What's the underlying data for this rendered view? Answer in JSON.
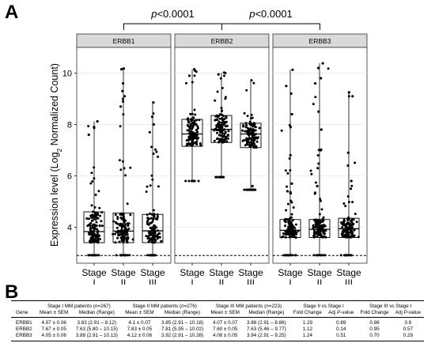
{
  "figure": {
    "panel_a_letter": "A",
    "panel_b_letter": "B"
  },
  "chart_data": {
    "type": "box",
    "ylabel_main": "Expression level (Log",
    "ylabel_sub": "2",
    "ylabel_tail": " Normalized Count)",
    "ylim": [
      2.6,
      11.0
    ],
    "yticks": [
      4,
      6,
      8,
      10
    ],
    "threshold_line": 2.9,
    "categories": [
      "Stage I",
      "Stage II",
      "Stage III"
    ],
    "category_line1": "Stage",
    "category_line2": [
      "I",
      "II",
      "III"
    ],
    "significance": [
      {
        "from": "ERBB1",
        "to": "ERBB2",
        "label_p": "p",
        "label_rest": "<0.0001"
      },
      {
        "from": "ERBB2",
        "to": "ERBB3",
        "label_p": "p",
        "label_rest": "<0.0001"
      }
    ],
    "colors": {
      "panel_header": "#d9d9d9",
      "grid": "#e6e6e6",
      "point": "#000000"
    },
    "grid": true,
    "panels": [
      {
        "name": "ERBB1",
        "series": [
          {
            "stage": "Stage I",
            "n": 267,
            "min": 2.91,
            "q1": 3.4,
            "median": 3.83,
            "q3": 4.6,
            "max": 8.12,
            "outliers": [
              8.12,
              7.9,
              7.6
            ]
          },
          {
            "stage": "Stage II",
            "n": 276,
            "min": 2.91,
            "q1": 3.4,
            "median": 3.85,
            "q3": 4.55,
            "max": 10.18,
            "outliers": [
              10.18,
              10.15,
              9.6,
              9.3,
              9.1,
              8.9,
              8.7
            ]
          },
          {
            "stage": "Stage III",
            "n": 223,
            "min": 2.91,
            "q1": 3.4,
            "median": 3.86,
            "q3": 4.5,
            "max": 8.86,
            "outliers": [
              8.86,
              8.3,
              8.0,
              7.7
            ]
          }
        ]
      },
      {
        "name": "ERBB2",
        "series": [
          {
            "stage": "Stage I",
            "n": 267,
            "min": 5.8,
            "q1": 7.15,
            "median": 7.63,
            "q3": 8.2,
            "max": 10.15,
            "outliers": [
              10.15,
              10.1,
              9.9
            ]
          },
          {
            "stage": "Stage II",
            "n": 276,
            "min": 5.95,
            "q1": 7.3,
            "median": 7.81,
            "q3": 8.35,
            "max": 10.02,
            "outliers": [
              10.02,
              9.95
            ]
          },
          {
            "stage": "Stage III",
            "n": 223,
            "min": 5.46,
            "q1": 7.1,
            "median": 7.63,
            "q3": 8.05,
            "max": 9.77,
            "outliers": [
              5.46,
              5.6
            ]
          }
        ]
      },
      {
        "name": "ERBB3",
        "series": [
          {
            "stage": "Stage I",
            "n": 267,
            "min": 2.91,
            "q1": 3.6,
            "median": 3.88,
            "q3": 4.3,
            "max": 10.13,
            "outliers": [
              10.13,
              9.5,
              9.2,
              8.4,
              7.9,
              6.8,
              6.1,
              5.7,
              5.4
            ]
          },
          {
            "stage": "Stage II",
            "n": 276,
            "min": 2.91,
            "q1": 3.6,
            "median": 3.92,
            "q3": 4.3,
            "max": 10.38,
            "outliers": [
              10.38,
              10.2,
              9.8,
              9.6,
              8.5,
              7.8,
              7.0,
              6.3,
              5.6
            ]
          },
          {
            "stage": "Stage III",
            "n": 223,
            "min": 2.91,
            "q1": 3.6,
            "median": 3.94,
            "q3": 4.35,
            "max": 9.25,
            "outliers": [
              9.25,
              9.1,
              6.9,
              6.4,
              5.8,
              5.5
            ]
          }
        ]
      }
    ]
  },
  "table": {
    "gene_header": "Gene",
    "groups": [
      {
        "pre": "Stage I MM patients (",
        "n_italic": "n",
        "post": "=267)"
      },
      {
        "pre": "Stage II MM patients (",
        "n_italic": "n",
        "post": "=276)"
      },
      {
        "pre": "Stage III MM patients (",
        "n_italic": "n",
        "post": "=223)"
      },
      {
        "pre": "Stage II vs Stage I",
        "n_italic": "",
        "post": ""
      },
      {
        "pre": "Stage III vs Stage I",
        "n_italic": "",
        "post": ""
      }
    ],
    "sub": {
      "mean": "Mean ± SEM",
      "median": "Median (Range)",
      "fold": "Fold Change",
      "adj_pre": "Adj ",
      "adj_p": "P",
      "adj_post": "-value"
    },
    "rows": [
      {
        "gene": "ERBB1",
        "c": [
          "4.07 ± 0.06",
          "3.83 (2.91 – 8.12)",
          "4.1 ± 0.07",
          "3.85 (2.91 – 10.18)",
          "4.07 ± 0.07",
          "3.86 (2.91 – 8.86)",
          "1.29",
          "0.89",
          "0.98",
          "0.8"
        ]
      },
      {
        "gene": "ERBB2",
        "c": [
          "7.67 ± 0.05",
          "7.63 (5.80 – 10.15)",
          "7.83 ± 0.05",
          "7.81 (5.95 – 10.02)",
          "7.60 ± 0.05",
          "7.63 (5.46 – 9.77)",
          "1.12",
          "0.14",
          "0.95",
          "0.57"
        ]
      },
      {
        "gene": "ERBB3",
        "c": [
          "4.05 ± 0.06",
          "3.88 (2.91 – 10.13)",
          "4.12 ± 0.06",
          "3.92 (2.91 – 10.38)",
          "4.08 ± 0.05",
          "3.94 (2.91 – 9.25)",
          "1.24",
          "0.51",
          "0.70",
          "0.29"
        ]
      }
    ]
  }
}
